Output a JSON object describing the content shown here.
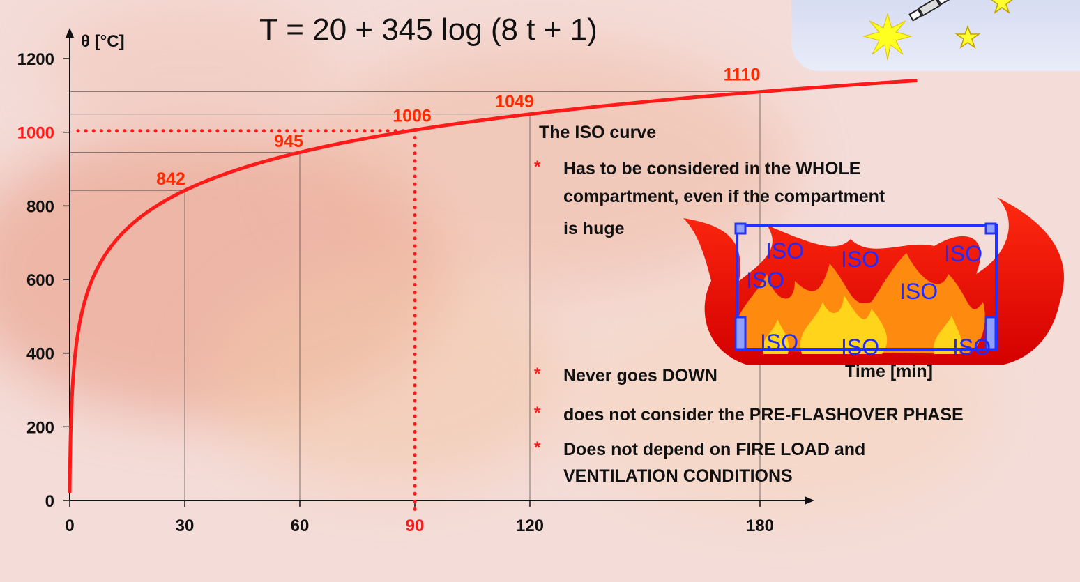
{
  "formula": "T = 20 + 345 log (8 t + 1)",
  "colors": {
    "curve": "#ff1a1a",
    "value_labels": "#ff2a00",
    "highlight": "#ff1a1a",
    "box_outline": "#2233ff",
    "iso_text": "#1f2bff"
  },
  "chart_data": {
    "type": "line",
    "title": "",
    "ylabel": "θ [°C]",
    "xlabel": "Time [min]",
    "xlim": [
      0,
      180
    ],
    "ylim": [
      0,
      1200
    ],
    "x_ticks": [
      "0",
      "30",
      "60",
      "90",
      "120",
      "180"
    ],
    "x_tick_values": [
      0,
      30,
      60,
      90,
      120,
      180
    ],
    "y_ticks": [
      "0",
      "200",
      "400",
      "600",
      "800",
      "1000",
      "1200"
    ],
    "y_tick_values": [
      0,
      200,
      400,
      600,
      800,
      1000,
      1200
    ],
    "highlight_x_tick": "90",
    "highlight_y_tick": "1000",
    "curve_x_end": 221,
    "series": [
      {
        "values": [
          {
            "x": 0,
            "y": 20
          },
          {
            "x": 1,
            "y": 349
          },
          {
            "x": 2,
            "y": 445
          },
          {
            "x": 5,
            "y": 576
          },
          {
            "x": 10,
            "y": 678
          },
          {
            "x": 15,
            "y": 739
          },
          {
            "x": 20,
            "y": 781
          },
          {
            "x": 30,
            "y": 842
          },
          {
            "x": 45,
            "y": 902
          },
          {
            "x": 60,
            "y": 945
          },
          {
            "x": 90,
            "y": 1006
          },
          {
            "x": 120,
            "y": 1049
          },
          {
            "x": 150,
            "y": 1082
          },
          {
            "x": 180,
            "y": 1110
          },
          {
            "x": 221,
            "y": 1141
          }
        ]
      }
    ],
    "annotations": [
      {
        "x": 30,
        "y": 842,
        "label": "842"
      },
      {
        "x": 60,
        "y": 945,
        "label": "945"
      },
      {
        "x": 90,
        "y": 1006,
        "label": "1006"
      },
      {
        "x": 120,
        "y": 1049,
        "label": "1049"
      },
      {
        "x": 180,
        "y": 1110,
        "label": "1110"
      }
    ]
  },
  "notes": {
    "title": "The ISO curve",
    "bullet_marker": "*",
    "bullet1_line1": "Has to be considered in the WHOLE",
    "bullet1_line2": "compartment, even if the compartment",
    "bullet1_line3": "is huge",
    "bullet2": "Never goes DOWN",
    "bullet3": "does not consider the PRE-FLASHOVER PHASE",
    "bullet4_line1": "Does not depend on FIRE LOAD and",
    "bullet4_line2": "VENTILATION CONDITIONS"
  },
  "illustration": {
    "iso_labels": [
      "ISO",
      "ISO",
      "ISO",
      "ISO",
      "ISO",
      "ISO",
      "ISO",
      "ISO"
    ],
    "decor_icons": [
      "satellite-icon",
      "star-icon",
      "star-icon",
      "starburst-icon"
    ]
  }
}
